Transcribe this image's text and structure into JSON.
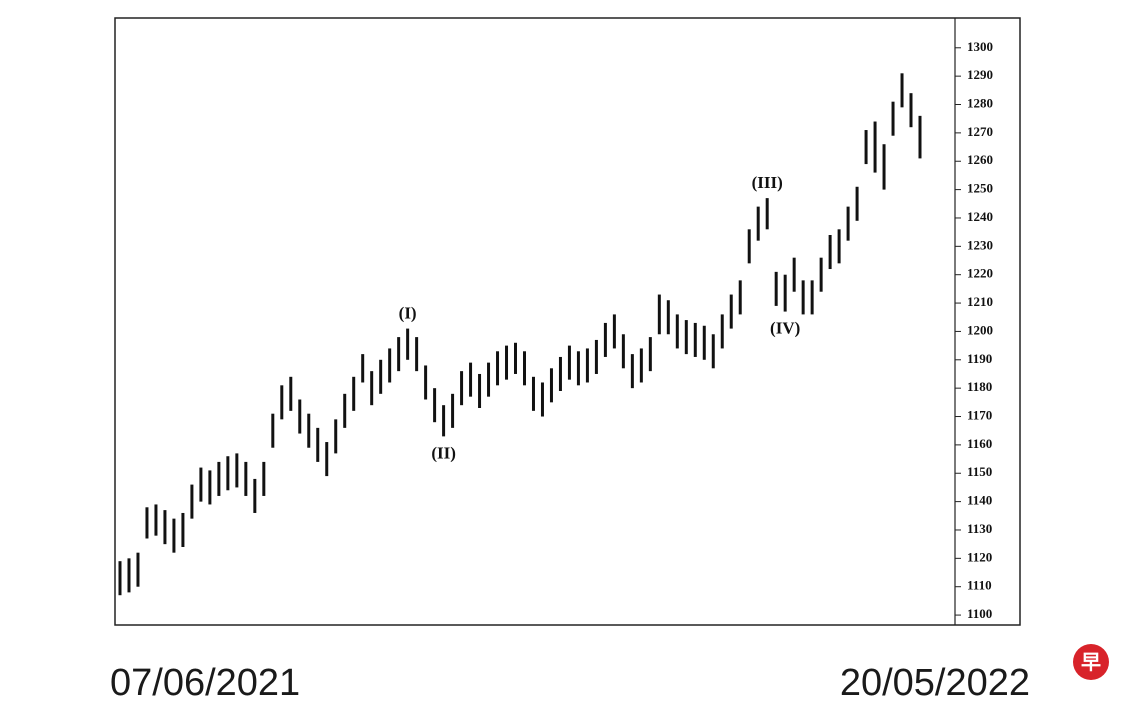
{
  "chart_data": {
    "type": "hilo",
    "categories": [
      "07/06/2021",
      null,
      null,
      null,
      null,
      null,
      null,
      null,
      null,
      null,
      null,
      null,
      null,
      null,
      null,
      null,
      null,
      null,
      null,
      null,
      null,
      null,
      null,
      null,
      null,
      null,
      null,
      null,
      null,
      null,
      null,
      null,
      null,
      null,
      null,
      null,
      null,
      null,
      null,
      null,
      null,
      null,
      null,
      null,
      null,
      null,
      null,
      null,
      null,
      null,
      null,
      null,
      null,
      null,
      null,
      null,
      null,
      null,
      null,
      null,
      null,
      null,
      null,
      null,
      null,
      null,
      null,
      null,
      null,
      null,
      null,
      null,
      null,
      null,
      null,
      null,
      null,
      null,
      null,
      null,
      null,
      null,
      null,
      null,
      null,
      null,
      null,
      null,
      null,
      "20/05/2022"
    ],
    "highs": [
      1119,
      1120,
      1122,
      1138,
      1139,
      1137,
      1134,
      1136,
      1146,
      1152,
      1151,
      1154,
      1156,
      1157,
      1154,
      1148,
      1154,
      1171,
      1181,
      1184,
      1176,
      1171,
      1166,
      1161,
      1169,
      1178,
      1184,
      1192,
      1186,
      1190,
      1194,
      1198,
      1201,
      1198,
      1188,
      1180,
      1174,
      1178,
      1186,
      1189,
      1185,
      1189,
      1193,
      1195,
      1196,
      1193,
      1184,
      1182,
      1187,
      1191,
      1195,
      1193,
      1194,
      1197,
      1203,
      1206,
      1199,
      1192,
      1194,
      1198,
      1213,
      1211,
      1206,
      1204,
      1203,
      1202,
      1199,
      1206,
      1213,
      1218,
      1236,
      1244,
      1247,
      1221,
      1220,
      1226,
      1218,
      1218,
      1226,
      1234,
      1236,
      1244,
      1251,
      1271,
      1274,
      1266,
      1281,
      1291,
      1284,
      1276
    ],
    "lows": [
      1107,
      1108,
      1110,
      1127,
      1128,
      1125,
      1122,
      1124,
      1134,
      1140,
      1139,
      1142,
      1144,
      1145,
      1142,
      1136,
      1142,
      1159,
      1169,
      1172,
      1164,
      1159,
      1154,
      1149,
      1157,
      1166,
      1172,
      1182,
      1174,
      1178,
      1182,
      1186,
      1190,
      1186,
      1176,
      1168,
      1163,
      1166,
      1174,
      1177,
      1173,
      1177,
      1181,
      1183,
      1185,
      1181,
      1172,
      1170,
      1175,
      1179,
      1183,
      1181,
      1182,
      1185,
      1191,
      1194,
      1187,
      1180,
      1182,
      1186,
      1199,
      1199,
      1194,
      1192,
      1191,
      1190,
      1187,
      1194,
      1201,
      1206,
      1224,
      1232,
      1236,
      1209,
      1207,
      1214,
      1206,
      1206,
      1214,
      1222,
      1224,
      1232,
      1239,
      1259,
      1256,
      1250,
      1269,
      1279,
      1272,
      1261
    ],
    "color": "#111111",
    "ylim": [
      1096.5,
      1310.5
    ],
    "yticks": [
      1100,
      1110,
      1120,
      1130,
      1140,
      1150,
      1160,
      1170,
      1180,
      1190,
      1200,
      1210,
      1220,
      1230,
      1240,
      1250,
      1260,
      1270,
      1280,
      1290,
      1300
    ],
    "y_axis_side": "right",
    "grid": false,
    "annotations": [
      {
        "text": "(I)",
        "x": 32,
        "y": 1201,
        "position": "above"
      },
      {
        "text": "(II)",
        "x": 36,
        "y": 1163,
        "position": "below"
      },
      {
        "text": "(III)",
        "x": 72,
        "y": 1247,
        "position": "above"
      },
      {
        "text": "(IV)",
        "x": 74,
        "y": 1207,
        "position": "below"
      }
    ]
  },
  "logo": "早"
}
